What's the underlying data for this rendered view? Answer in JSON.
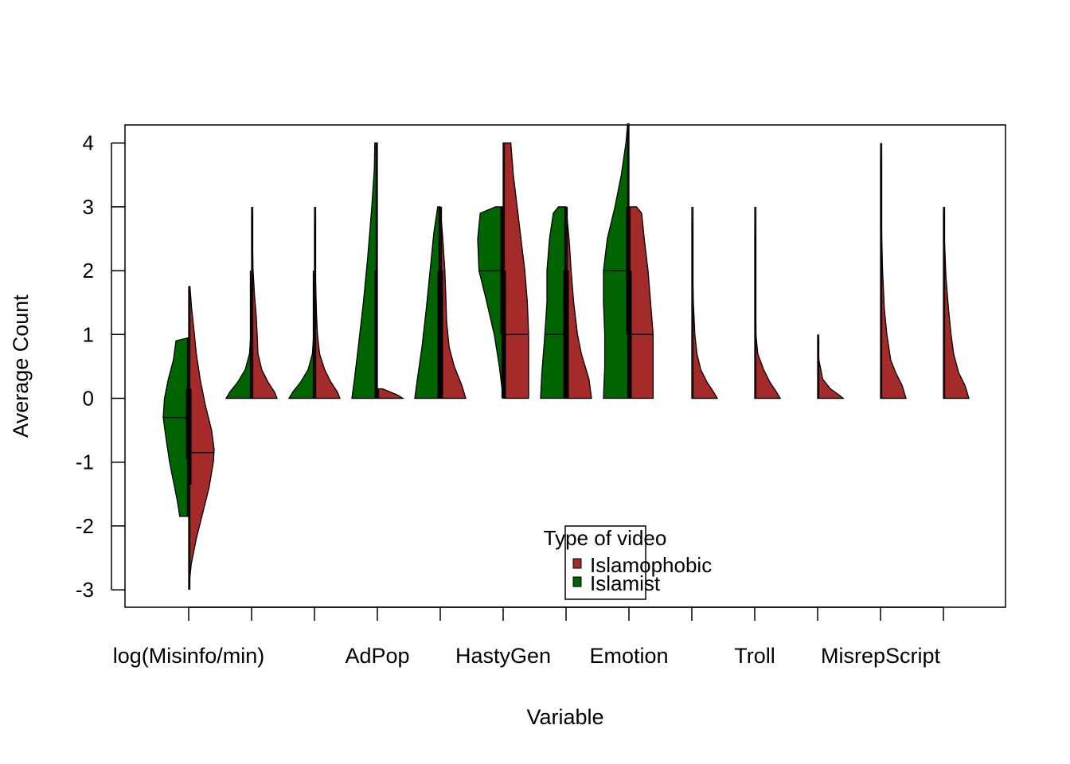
{
  "chart_data": {
    "type": "split-violin",
    "title": "",
    "xlabel": "Variable",
    "ylabel": "Average Count",
    "ylim": [
      -3.25,
      4.3
    ],
    "yticks": [
      -3,
      -2,
      -1,
      0,
      1,
      2,
      3,
      4
    ],
    "ytick_labels": [
      "-3",
      "-2",
      "-1",
      "0",
      "1",
      "2",
      "3",
      "4"
    ],
    "grid": false,
    "categories": [
      "log(Misinfo/min)",
      "",
      "",
      "AdPop",
      "",
      "HastyGen",
      "",
      "Emotion",
      "",
      "Troll",
      "",
      "MisrepScript",
      ""
    ],
    "legend": {
      "title": "Type of video",
      "placement": "bottom-center",
      "entries": [
        "Islamophobic",
        "Islamist"
      ]
    },
    "series": [
      {
        "name": "Islamist",
        "side": "left",
        "color": "#006400",
        "violins": [
          {
            "min": -1.85,
            "max": 0.95,
            "median": -0.3,
            "q1": -0.95,
            "q3": 0.15,
            "profile": [
              [
                -1.85,
                0.35
              ],
              [
                -1.6,
                0.45
              ],
              [
                -1.3,
                0.6
              ],
              [
                -1.0,
                0.75
              ],
              [
                -0.6,
                0.9
              ],
              [
                -0.3,
                1.0
              ],
              [
                0.0,
                0.95
              ],
              [
                0.3,
                0.8
              ],
              [
                0.6,
                0.6
              ],
              [
                0.9,
                0.5
              ],
              [
                0.95,
                0.0
              ]
            ]
          },
          {
            "min": 0,
            "max": 2.0,
            "median": 0,
            "q1": 0,
            "q3": 0,
            "profile": [
              [
                0,
                1.0
              ],
              [
                0.1,
                0.85
              ],
              [
                0.25,
                0.55
              ],
              [
                0.45,
                0.25
              ],
              [
                0.7,
                0.08
              ],
              [
                1.0,
                0.03
              ],
              [
                1.5,
                0.02
              ],
              [
                2.0,
                0.0
              ]
            ]
          },
          {
            "min": 0,
            "max": 2.0,
            "median": 0,
            "q1": 0,
            "q3": 0,
            "profile": [
              [
                0,
                1.0
              ],
              [
                0.1,
                0.85
              ],
              [
                0.25,
                0.55
              ],
              [
                0.45,
                0.25
              ],
              [
                0.7,
                0.08
              ],
              [
                1.0,
                0.03
              ],
              [
                1.5,
                0.02
              ],
              [
                2.0,
                0.0
              ]
            ]
          },
          {
            "min": 0,
            "max": 4.0,
            "median": 0,
            "q1": 0,
            "q3": 2.0,
            "profile": [
              [
                0,
                1.0
              ],
              [
                0.3,
                0.9
              ],
              [
                0.8,
                0.75
              ],
              [
                1.5,
                0.55
              ],
              [
                2.2,
                0.38
              ],
              [
                3.0,
                0.22
              ],
              [
                3.6,
                0.12
              ],
              [
                4.0,
                0.1
              ]
            ]
          },
          {
            "min": 0,
            "max": 3.0,
            "median": 0,
            "q1": 0,
            "q3": 2.0,
            "profile": [
              [
                0,
                1.0
              ],
              [
                0.3,
                0.9
              ],
              [
                0.8,
                0.72
              ],
              [
                1.4,
                0.55
              ],
              [
                2.0,
                0.4
              ],
              [
                2.6,
                0.25
              ],
              [
                3.0,
                0.1
              ]
            ]
          },
          {
            "min": 0,
            "max": 3.0,
            "median": 2.0,
            "q1": 1.0,
            "q3": 3.0,
            "profile": [
              [
                0,
                0.0
              ],
              [
                0.5,
                0.15
              ],
              [
                1.0,
                0.35
              ],
              [
                1.6,
                0.7
              ],
              [
                2.0,
                0.95
              ],
              [
                2.5,
                1.0
              ],
              [
                2.9,
                0.9
              ],
              [
                3.0,
                0.3
              ]
            ]
          },
          {
            "min": 0,
            "max": 3.0,
            "median": 1.0,
            "q1": 0,
            "q3": 2.0,
            "profile": [
              [
                0,
                1.0
              ],
              [
                0.4,
                0.95
              ],
              [
                0.9,
                0.85
              ],
              [
                1.5,
                0.75
              ],
              [
                2.0,
                0.75
              ],
              [
                2.5,
                0.65
              ],
              [
                2.9,
                0.5
              ],
              [
                3.0,
                0.3
              ]
            ]
          },
          {
            "min": 0,
            "max": 4.3,
            "median": 2.0,
            "q1": 1.0,
            "q3": 3.0,
            "profile": [
              [
                0,
                1.0
              ],
              [
                0.5,
                0.95
              ],
              [
                1.0,
                0.95
              ],
              [
                1.5,
                1.0
              ],
              [
                2.0,
                1.0
              ],
              [
                2.5,
                0.85
              ],
              [
                3.0,
                0.55
              ],
              [
                3.5,
                0.3
              ],
              [
                4.0,
                0.12
              ],
              [
                4.3,
                0.05
              ]
            ]
          },
          {
            "min": 0,
            "max": 0,
            "median": 0,
            "q1": 0,
            "q3": 0,
            "profile": []
          },
          {
            "min": 0,
            "max": 0,
            "median": 0,
            "q1": 0,
            "q3": 0,
            "profile": []
          },
          {
            "min": 0,
            "max": 0,
            "median": 0,
            "q1": 0,
            "q3": 0,
            "profile": []
          },
          {
            "min": 0,
            "max": 0,
            "median": 0,
            "q1": 0,
            "q3": 0,
            "profile": []
          },
          {
            "min": 0,
            "max": 0,
            "median": 0,
            "q1": 0,
            "q3": 0,
            "profile": []
          }
        ]
      },
      {
        "name": "Islamophobic",
        "side": "right",
        "color": "#A52A2A",
        "violins": [
          {
            "min": -3.0,
            "max": 1.75,
            "median": -0.85,
            "q1": -1.35,
            "q3": 0.15,
            "profile": [
              [
                -3.0,
                0.0
              ],
              [
                -2.6,
                0.1
              ],
              [
                -2.2,
                0.3
              ],
              [
                -1.8,
                0.55
              ],
              [
                -1.4,
                0.8
              ],
              [
                -1.0,
                0.97
              ],
              [
                -0.8,
                1.0
              ],
              [
                -0.5,
                0.9
              ],
              [
                -0.1,
                0.65
              ],
              [
                0.3,
                0.45
              ],
              [
                0.7,
                0.3
              ],
              [
                1.1,
                0.2
              ],
              [
                1.4,
                0.12
              ],
              [
                1.75,
                0.05
              ]
            ]
          },
          {
            "min": 0,
            "max": 3.0,
            "median": 0,
            "q1": 0,
            "q3": 0,
            "profile": [
              [
                0,
                1.0
              ],
              [
                0.1,
                0.9
              ],
              [
                0.25,
                0.65
              ],
              [
                0.45,
                0.4
              ],
              [
                0.7,
                0.25
              ],
              [
                1.0,
                0.22
              ],
              [
                1.3,
                0.18
              ],
              [
                1.6,
                0.12
              ],
              [
                2.0,
                0.06
              ],
              [
                2.5,
                0.03
              ],
              [
                3.0,
                0.0
              ]
            ]
          },
          {
            "min": 0,
            "max": 3.0,
            "median": 0,
            "q1": 0,
            "q3": 0,
            "profile": [
              [
                0,
                1.0
              ],
              [
                0.1,
                0.9
              ],
              [
                0.25,
                0.65
              ],
              [
                0.45,
                0.4
              ],
              [
                0.7,
                0.2
              ],
              [
                1.0,
                0.12
              ],
              [
                1.3,
                0.08
              ],
              [
                2.0,
                0.03
              ],
              [
                3.0,
                0.0
              ]
            ]
          },
          {
            "min": 0,
            "max": 0.15,
            "median": 0,
            "q1": 0,
            "q3": 0,
            "profile": [
              [
                0,
                1.0
              ],
              [
                0.05,
                0.8
              ],
              [
                0.1,
                0.5
              ],
              [
                0.15,
                0.2
              ]
            ]
          },
          {
            "min": 0,
            "max": 3.0,
            "median": 0,
            "q1": 0,
            "q3": 2.0,
            "profile": [
              [
                0,
                1.0
              ],
              [
                0.2,
                0.85
              ],
              [
                0.5,
                0.55
              ],
              [
                0.8,
                0.35
              ],
              [
                1.2,
                0.25
              ],
              [
                1.6,
                0.22
              ],
              [
                2.0,
                0.18
              ],
              [
                2.5,
                0.1
              ],
              [
                3.0,
                0.0
              ]
            ]
          },
          {
            "min": 0,
            "max": 4.0,
            "median": 1.0,
            "q1": 0,
            "q3": 2.0,
            "profile": [
              [
                0,
                1.0
              ],
              [
                0.5,
                1.0
              ],
              [
                1.0,
                1.0
              ],
              [
                1.5,
                0.95
              ],
              [
                2.0,
                0.85
              ],
              [
                2.5,
                0.7
              ],
              [
                3.0,
                0.55
              ],
              [
                3.5,
                0.4
              ],
              [
                4.0,
                0.3
              ]
            ]
          },
          {
            "min": 0,
            "max": 3.0,
            "median": 0,
            "q1": 0,
            "q3": 2.0,
            "profile": [
              [
                0,
                1.0
              ],
              [
                0.3,
                0.9
              ],
              [
                0.7,
                0.6
              ],
              [
                1.0,
                0.45
              ],
              [
                1.5,
                0.3
              ],
              [
                2.0,
                0.2
              ],
              [
                2.5,
                0.12
              ],
              [
                3.0,
                0.0
              ]
            ]
          },
          {
            "min": 0,
            "max": 3.0,
            "median": 1.0,
            "q1": 0,
            "q3": 2.0,
            "profile": [
              [
                0,
                0.95
              ],
              [
                0.5,
                0.95
              ],
              [
                1.0,
                0.95
              ],
              [
                1.5,
                0.85
              ],
              [
                2.0,
                0.75
              ],
              [
                2.5,
                0.6
              ],
              [
                2.9,
                0.5
              ],
              [
                3.0,
                0.3
              ]
            ]
          },
          {
            "min": 0,
            "max": 3.0,
            "median": 0,
            "q1": 0,
            "q3": 0,
            "profile": [
              [
                0,
                1.0
              ],
              [
                0.1,
                0.85
              ],
              [
                0.25,
                0.6
              ],
              [
                0.45,
                0.35
              ],
              [
                0.7,
                0.2
              ],
              [
                1.0,
                0.12
              ],
              [
                1.5,
                0.06
              ],
              [
                2.0,
                0.03
              ],
              [
                3.0,
                0.0
              ]
            ]
          },
          {
            "min": 0,
            "max": 3.0,
            "median": 0,
            "q1": 0,
            "q3": 0,
            "profile": [
              [
                0,
                1.0
              ],
              [
                0.1,
                0.85
              ],
              [
                0.25,
                0.6
              ],
              [
                0.45,
                0.35
              ],
              [
                0.7,
                0.12
              ],
              [
                1.0,
                0.05
              ],
              [
                1.5,
                0.03
              ],
              [
                3.0,
                0.0
              ]
            ]
          },
          {
            "min": 0,
            "max": 1.0,
            "median": 0,
            "q1": 0,
            "q3": 0,
            "profile": [
              [
                0,
                1.0
              ],
              [
                0.05,
                0.85
              ],
              [
                0.15,
                0.5
              ],
              [
                0.3,
                0.2
              ],
              [
                0.6,
                0.05
              ],
              [
                1.0,
                0.0
              ]
            ]
          },
          {
            "min": 0,
            "max": 4.0,
            "median": 0,
            "q1": 0,
            "q3": 0,
            "profile": [
              [
                0,
                1.0
              ],
              [
                0.2,
                0.85
              ],
              [
                0.4,
                0.6
              ],
              [
                0.6,
                0.4
              ],
              [
                1.0,
                0.25
              ],
              [
                1.4,
                0.15
              ],
              [
                2.0,
                0.08
              ],
              [
                2.5,
                0.05
              ],
              [
                3.0,
                0.03
              ],
              [
                4.0,
                0.0
              ]
            ]
          },
          {
            "min": 0,
            "max": 3.0,
            "median": 0,
            "q1": 0,
            "q3": 0,
            "profile": [
              [
                0,
                1.0
              ],
              [
                0.2,
                0.85
              ],
              [
                0.4,
                0.6
              ],
              [
                0.7,
                0.4
              ],
              [
                1.0,
                0.3
              ],
              [
                1.4,
                0.2
              ],
              [
                1.9,
                0.1
              ],
              [
                2.4,
                0.05
              ],
              [
                3.0,
                0.0
              ]
            ]
          }
        ]
      }
    ]
  }
}
